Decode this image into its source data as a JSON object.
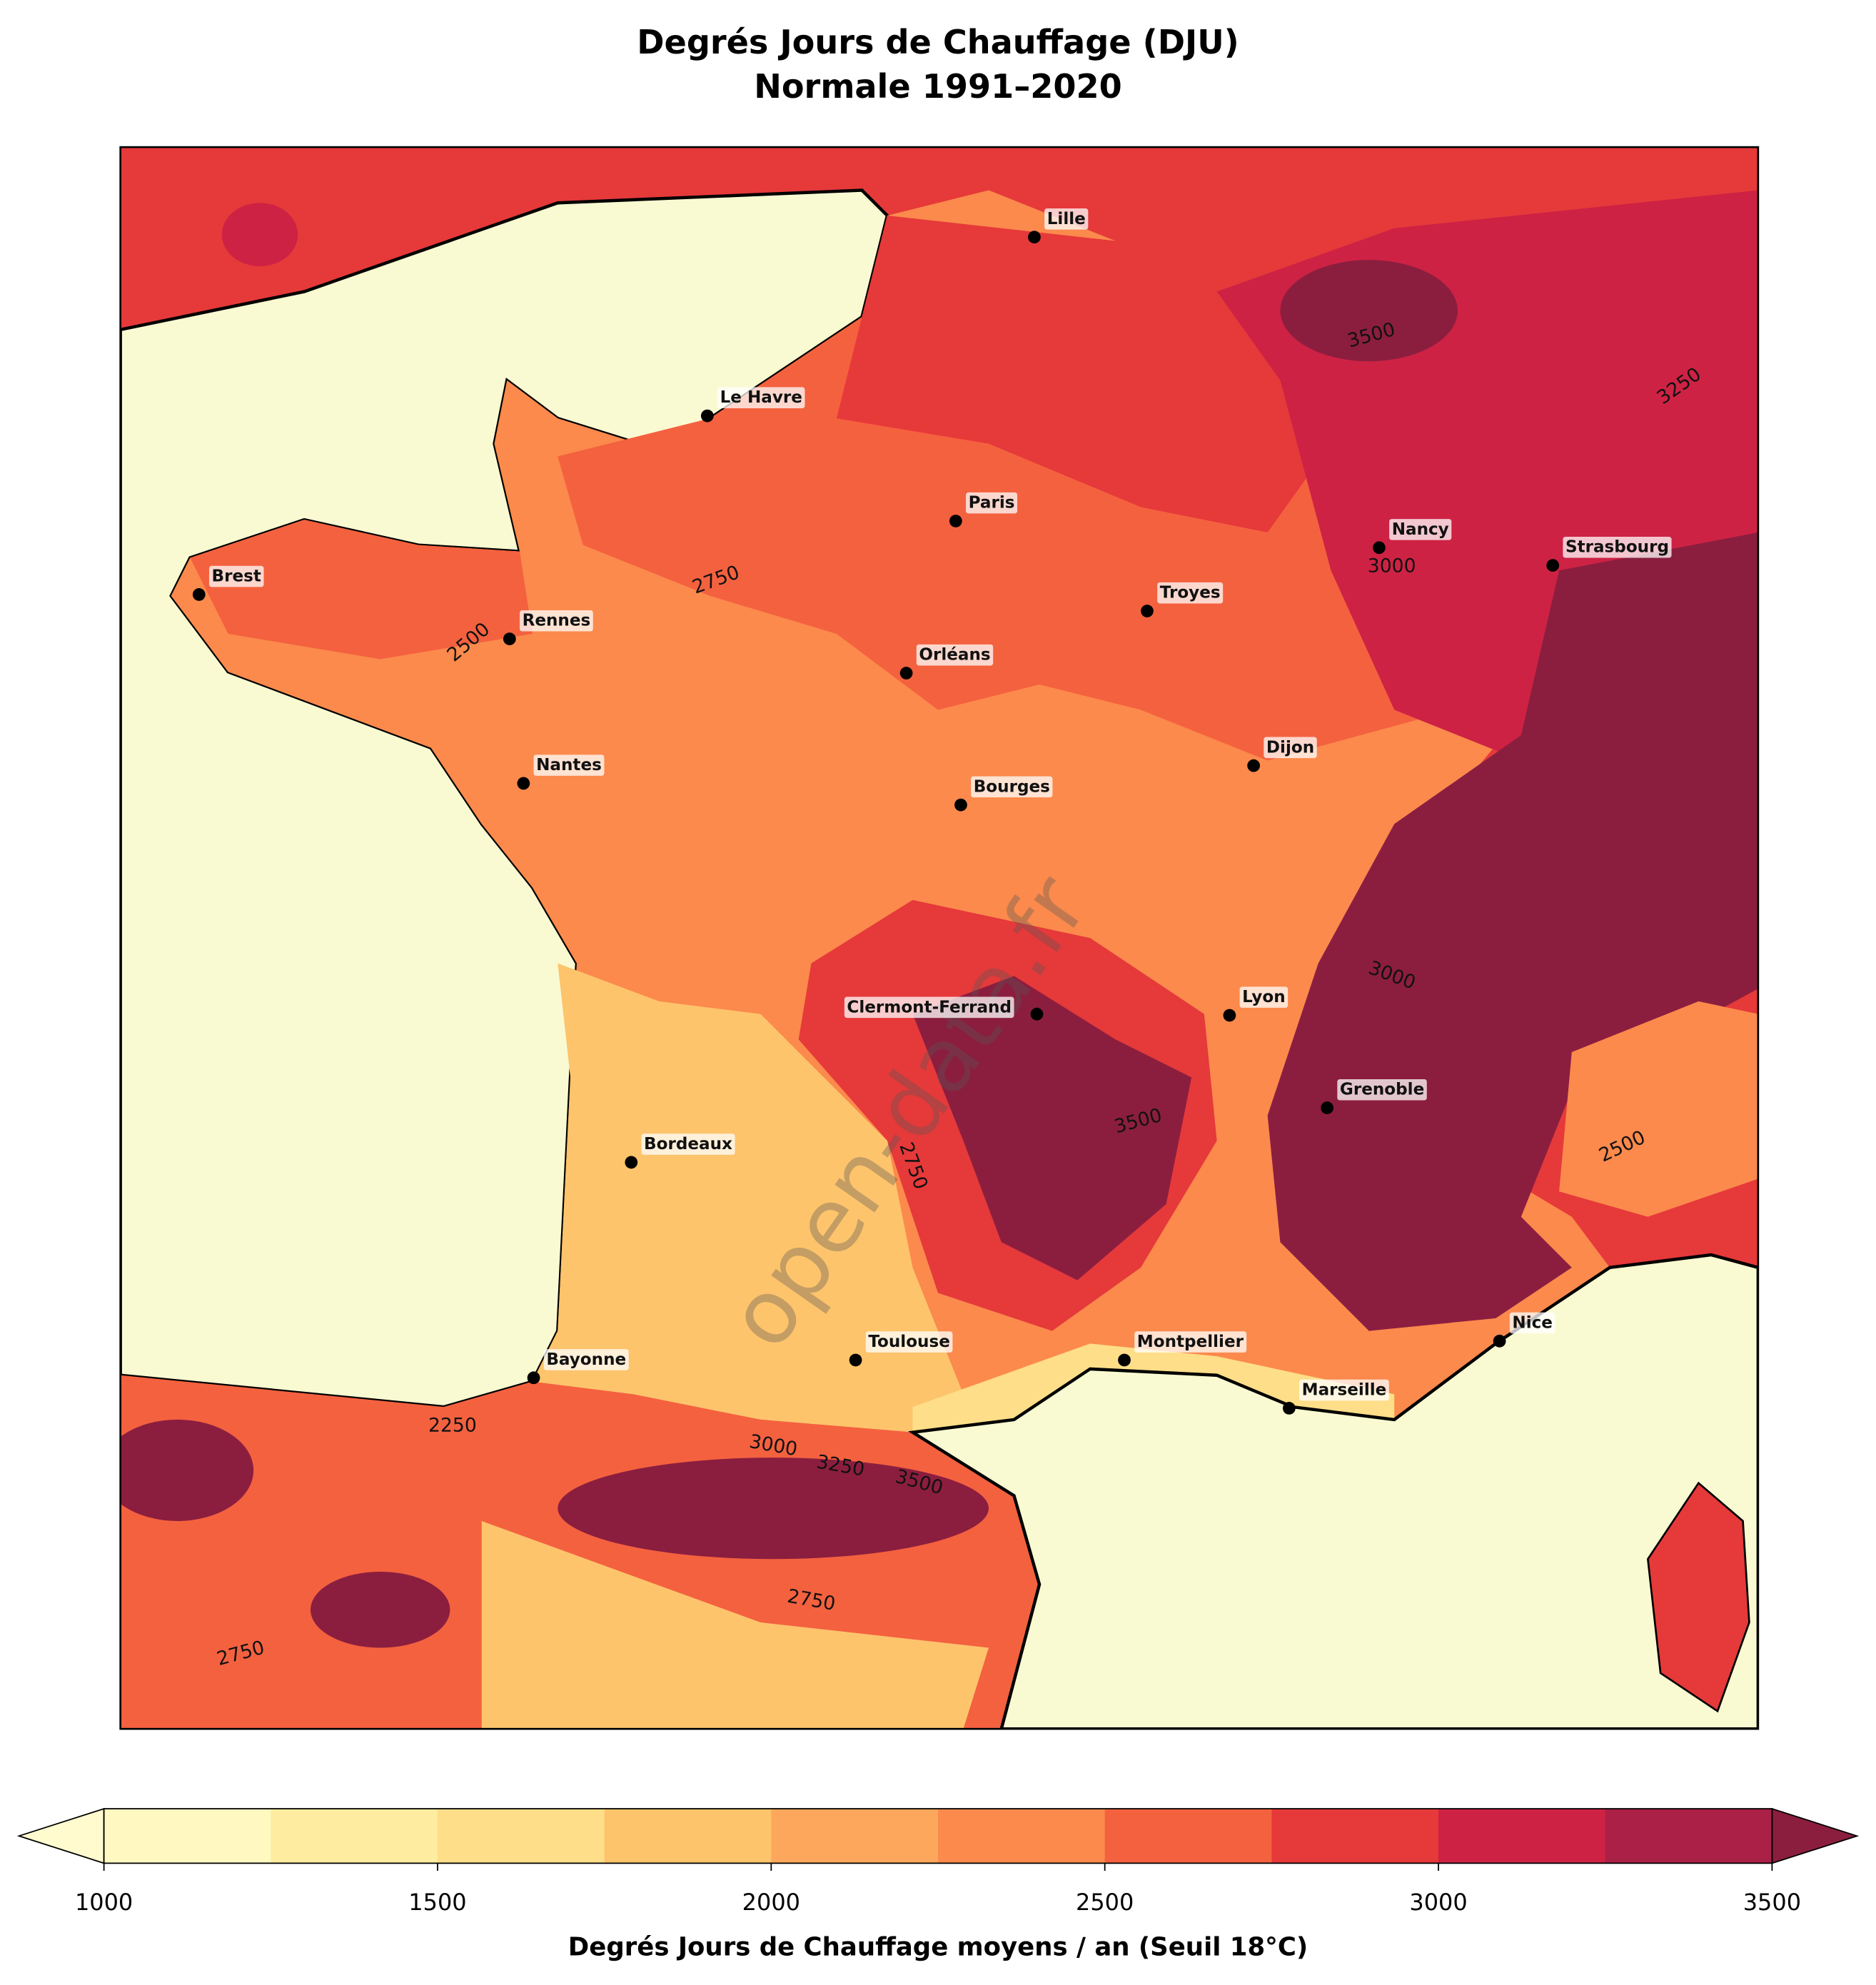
{
  "title": "Degrés Jours de Chauffage (DJU)",
  "subtitle": "Normale 1991–2020",
  "cities": [
    "Lille",
    "Le Havre",
    "Paris",
    "Nancy",
    "Strasbourg",
    "Brest",
    "Troyes",
    "Rennes",
    "Orléans",
    "Dijon",
    "Nantes",
    "Bourges",
    "Clermont-Ferrand",
    "Lyon",
    "Grenoble",
    "Bordeaux",
    "Toulouse",
    "Montpellier",
    "Bayonne",
    "Nice",
    "Marseille"
  ],
  "contour_labels": [
    2750,
    2500,
    3000,
    3500,
    3250,
    2750,
    2500,
    3500,
    3000,
    3000,
    3250,
    3500,
    2750,
    2250,
    2750
  ],
  "watermark": "open-data.fr",
  "colorbar": {
    "levels": [
      1000,
      1250,
      1500,
      1750,
      2000,
      2250,
      2500,
      2750,
      3000,
      3250,
      3500
    ],
    "colors": [
      "#fff8c0",
      "#feeca0",
      "#fede88",
      "#fdc46c",
      "#fca75c",
      "#fb8a4c",
      "#f4613f",
      "#e6393a",
      "#ce2244",
      "#ab2047"
    ],
    "extend_colors": [
      "#fffbcf",
      "#8b1e3f"
    ],
    "ticks": [
      1000,
      1500,
      2000,
      2500,
      3000,
      3500
    ],
    "label": "Degrés Jours de Chauffage moyens / an (Seuil 18°C)"
  }
}
